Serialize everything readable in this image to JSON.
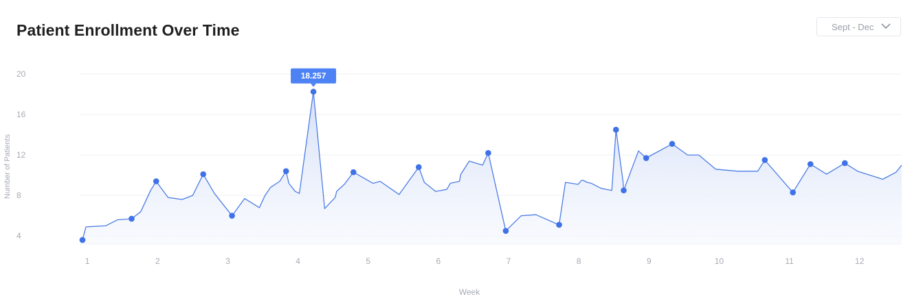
{
  "header": {
    "title": "Patient Enrollment Over Time",
    "range_select": {
      "value": "Sept - Dec",
      "icon": "chevron-down-icon"
    }
  },
  "colors": {
    "line": "#4c7ce6",
    "marker": "#3f72e6",
    "tooltip_bg": "#4d82f5",
    "grid": "#eef0f3",
    "area_top": "#dbe5f8"
  },
  "chart_data": {
    "type": "area",
    "title": "Patient Enrollment Over Time",
    "xlabel": "Week",
    "ylabel": "Number of Patients",
    "xlim": [
      0.93,
      12.6
    ],
    "ylim": [
      3.2,
      20
    ],
    "x_ticks": [
      1,
      2,
      3,
      4,
      5,
      6,
      7,
      8,
      9,
      10,
      11,
      12
    ],
    "y_ticks": [
      4,
      8,
      12,
      16,
      20
    ],
    "grid": true,
    "legend": "none",
    "series": [
      {
        "x": [
          0.93,
          0.98,
          1.26,
          1.43,
          1.63,
          1.76,
          1.9,
          1.98,
          2.15,
          2.35,
          2.5,
          2.65,
          2.81,
          3.06,
          3.24,
          3.45,
          3.53,
          3.61,
          3.74,
          3.83,
          3.87,
          3.96,
          4.02,
          4.22,
          4.38,
          4.53,
          4.55,
          4.66,
          4.79,
          5.07,
          5.17,
          5.44,
          5.72,
          5.8,
          5.96,
          6.12,
          6.17,
          6.3,
          6.32,
          6.44,
          6.63,
          6.71,
          6.96,
          7.18,
          7.39,
          7.72,
          7.81,
          7.99,
          8.04,
          8.06,
          8.12,
          8.18,
          8.32,
          8.47,
          8.53,
          8.63,
          8.64,
          8.85,
          8.96,
          9.33,
          9.55,
          9.71,
          9.95,
          10.26,
          10.55,
          10.65,
          11.05,
          11.3,
          11.53,
          11.79,
          11.97,
          12.33,
          12.52,
          12.6
        ],
        "y": [
          3.6,
          4.9,
          5.0,
          5.6,
          5.7,
          6.4,
          8.5,
          9.4,
          7.8,
          7.6,
          8.0,
          10.1,
          8.2,
          6.0,
          7.7,
          6.8,
          8.0,
          8.8,
          9.4,
          10.4,
          9.2,
          8.4,
          8.2,
          18.257,
          6.7,
          7.8,
          8.4,
          9.1,
          10.3,
          9.2,
          9.4,
          8.1,
          10.8,
          9.3,
          8.4,
          8.6,
          9.2,
          9.4,
          10.1,
          11.4,
          11.0,
          12.2,
          4.5,
          6.0,
          6.1,
          5.1,
          9.3,
          9.1,
          9.5,
          9.5,
          9.3,
          9.2,
          8.7,
          8.5,
          14.5,
          9.4,
          8.5,
          12.4,
          11.7,
          13.1,
          12.0,
          12.0,
          10.6,
          10.4,
          10.4,
          11.5,
          8.3,
          11.1,
          10.1,
          11.2,
          10.4,
          9.6,
          10.3,
          11.0
        ],
        "markers": [
          0,
          4,
          7,
          11,
          13,
          19,
          23,
          28,
          32,
          41,
          42,
          45,
          54,
          56,
          58,
          59,
          65,
          66,
          67,
          69
        ],
        "tooltip": {
          "point": 23,
          "label": "18.257"
        }
      }
    ]
  }
}
